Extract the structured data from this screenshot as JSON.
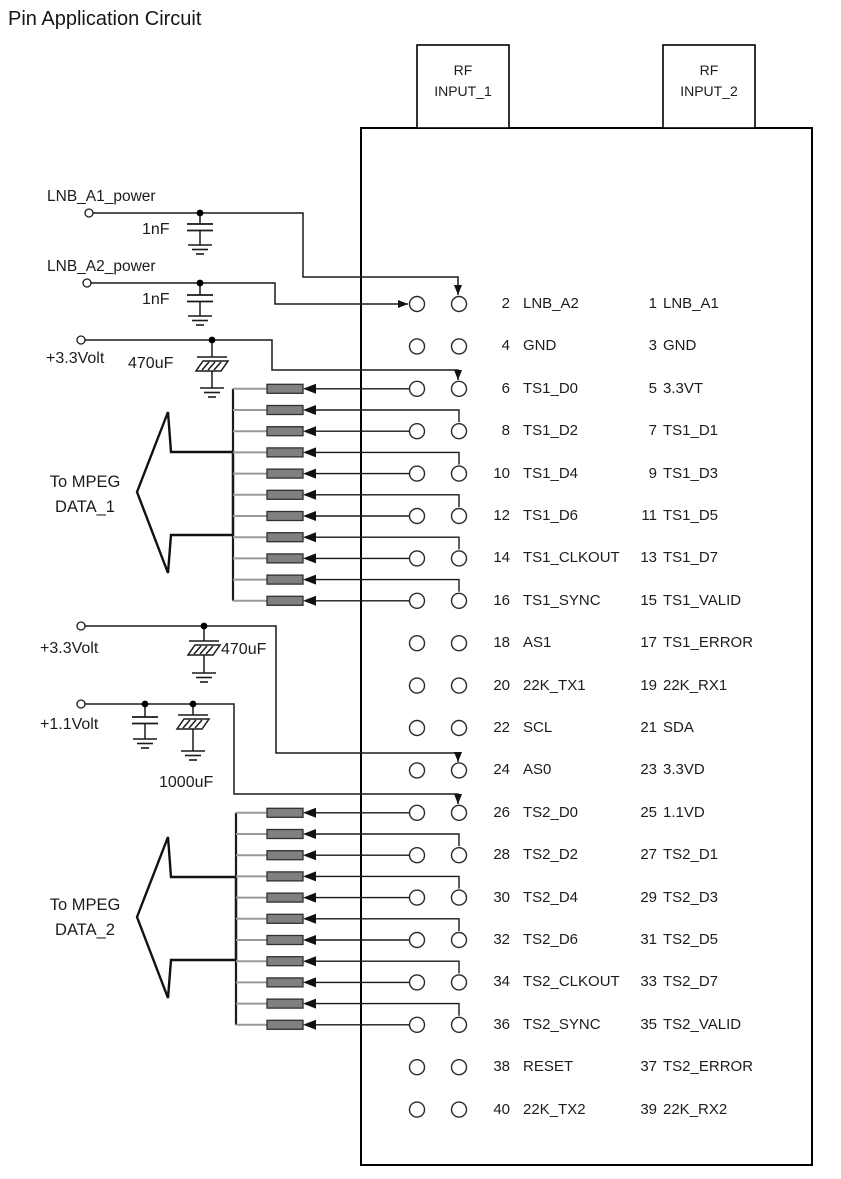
{
  "title": "Pin Application Circuit",
  "rf": [
    {
      "line1": "RF",
      "line2": "INPUT_1"
    },
    {
      "line1": "RF",
      "line2": "INPUT_2"
    }
  ],
  "power": {
    "lnb_a1_label": "LNB_A1_power",
    "lnb_a1_cap": "1nF",
    "lnb_a2_label": "LNB_A2_power",
    "lnb_a2_cap": "1nF",
    "v33_top_label": "+3.3Volt",
    "v33_top_cap": "470uF",
    "v33_mid_label": "+3.3Volt",
    "v33_mid_cap": "470uF",
    "v11_label": "+1.1Volt",
    "v11_cap": "1000uF"
  },
  "mpeg": [
    {
      "line1": "To MPEG",
      "line2": "DATA_1"
    },
    {
      "line1": "To MPEG",
      "line2": "DATA_2"
    }
  ],
  "pins": [
    {
      "l_num": "2",
      "l_name": "LNB_A2",
      "r_num": "1",
      "r_name": "LNB_A1"
    },
    {
      "l_num": "4",
      "l_name": "GND",
      "r_num": "3",
      "r_name": "GND"
    },
    {
      "l_num": "6",
      "l_name": "TS1_D0",
      "r_num": "5",
      "r_name": "3.3VT"
    },
    {
      "l_num": "8",
      "l_name": "TS1_D2",
      "r_num": "7",
      "r_name": "TS1_D1"
    },
    {
      "l_num": "10",
      "l_name": "TS1_D4",
      "r_num": "9",
      "r_name": "TS1_D3"
    },
    {
      "l_num": "12",
      "l_name": "TS1_D6",
      "r_num": "11",
      "r_name": "TS1_D5"
    },
    {
      "l_num": "14",
      "l_name": "TS1_CLKOUT",
      "r_num": "13",
      "r_name": "TS1_D7"
    },
    {
      "l_num": "16",
      "l_name": "TS1_SYNC",
      "r_num": "15",
      "r_name": "TS1_VALID"
    },
    {
      "l_num": "18",
      "l_name": "AS1",
      "r_num": "17",
      "r_name": "TS1_ERROR"
    },
    {
      "l_num": "20",
      "l_name": "22K_TX1",
      "r_num": "19",
      "r_name": "22K_RX1"
    },
    {
      "l_num": "22",
      "l_name": "SCL",
      "r_num": "21",
      "r_name": "SDA"
    },
    {
      "l_num": "24",
      "l_name": "AS0",
      "r_num": "23",
      "r_name": "3.3VD"
    },
    {
      "l_num": "26",
      "l_name": "TS2_D0",
      "r_num": "25",
      "r_name": "1.1VD"
    },
    {
      "l_num": "28",
      "l_name": "TS2_D2",
      "r_num": "27",
      "r_name": "TS2_D1"
    },
    {
      "l_num": "30",
      "l_name": "TS2_D4",
      "r_num": "29",
      "r_name": "TS2_D3"
    },
    {
      "l_num": "32",
      "l_name": "TS2_D6",
      "r_num": "31",
      "r_name": "TS2_D5"
    },
    {
      "l_num": "34",
      "l_name": "TS2_CLKOUT",
      "r_num": "33",
      "r_name": "TS2_D7"
    },
    {
      "l_num": "36",
      "l_name": "TS2_SYNC",
      "r_num": "35",
      "r_name": "TS2_VALID"
    },
    {
      "l_num": "38",
      "l_name": "RESET",
      "r_num": "37",
      "r_name": "TS2_ERROR"
    },
    {
      "l_num": "40",
      "l_name": "22K_TX2",
      "r_num": "39",
      "r_name": "22K_RX2"
    }
  ],
  "colors": {
    "line": "#1a1a1a",
    "resistor_fill": "#808080",
    "resistor_stroke": "#303030",
    "stub_gray": "#9a9a9a"
  }
}
